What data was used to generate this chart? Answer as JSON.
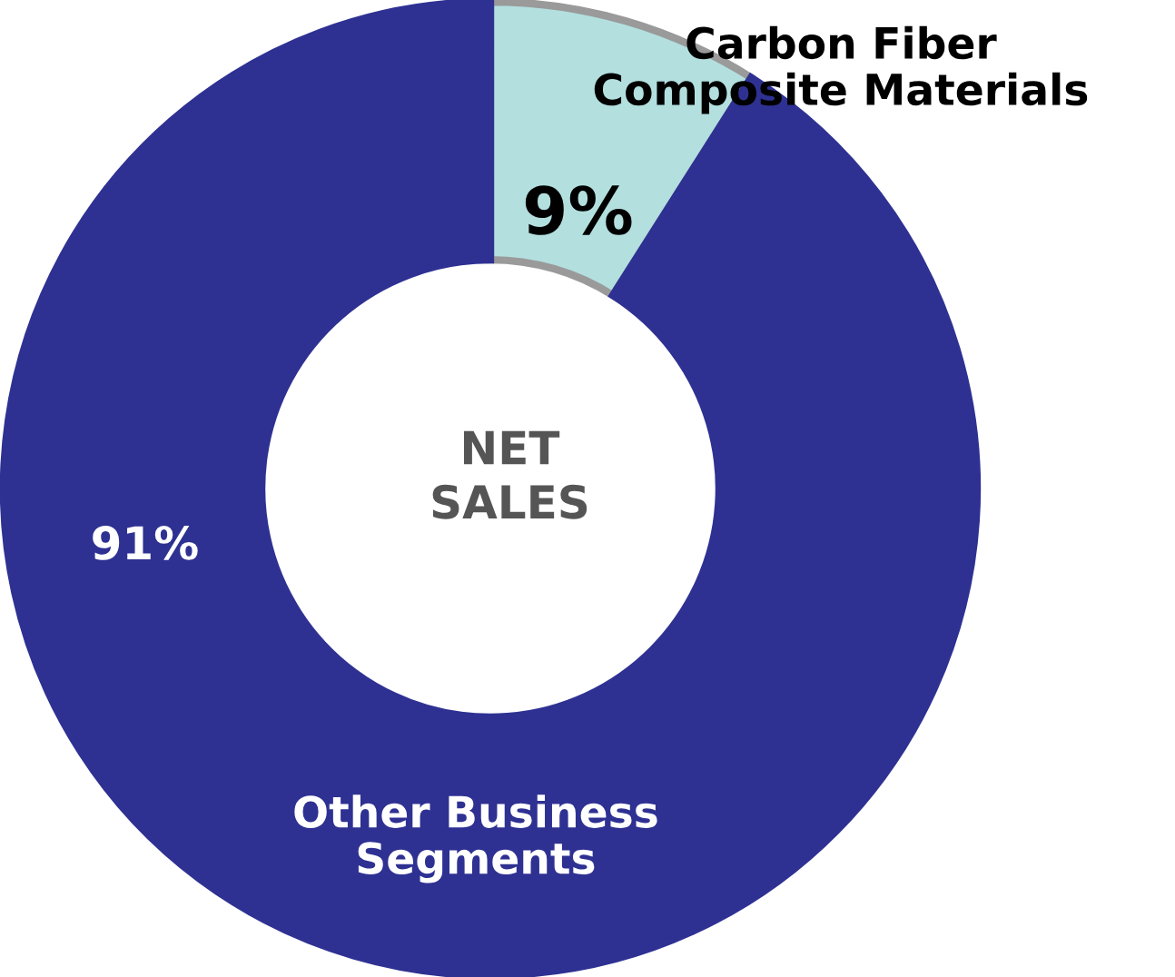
{
  "chart_data": {
    "type": "donut",
    "categories": [
      "Carbon Fiber\nComposite Materials",
      "Other Business\nSegments"
    ],
    "values": [
      9,
      91
    ],
    "colors": [
      "#b3dfdf",
      "#2e3192"
    ],
    "value_labels": [
      "9%",
      "91%"
    ],
    "annotations": [
      "NET\nSALES"
    ]
  }
}
